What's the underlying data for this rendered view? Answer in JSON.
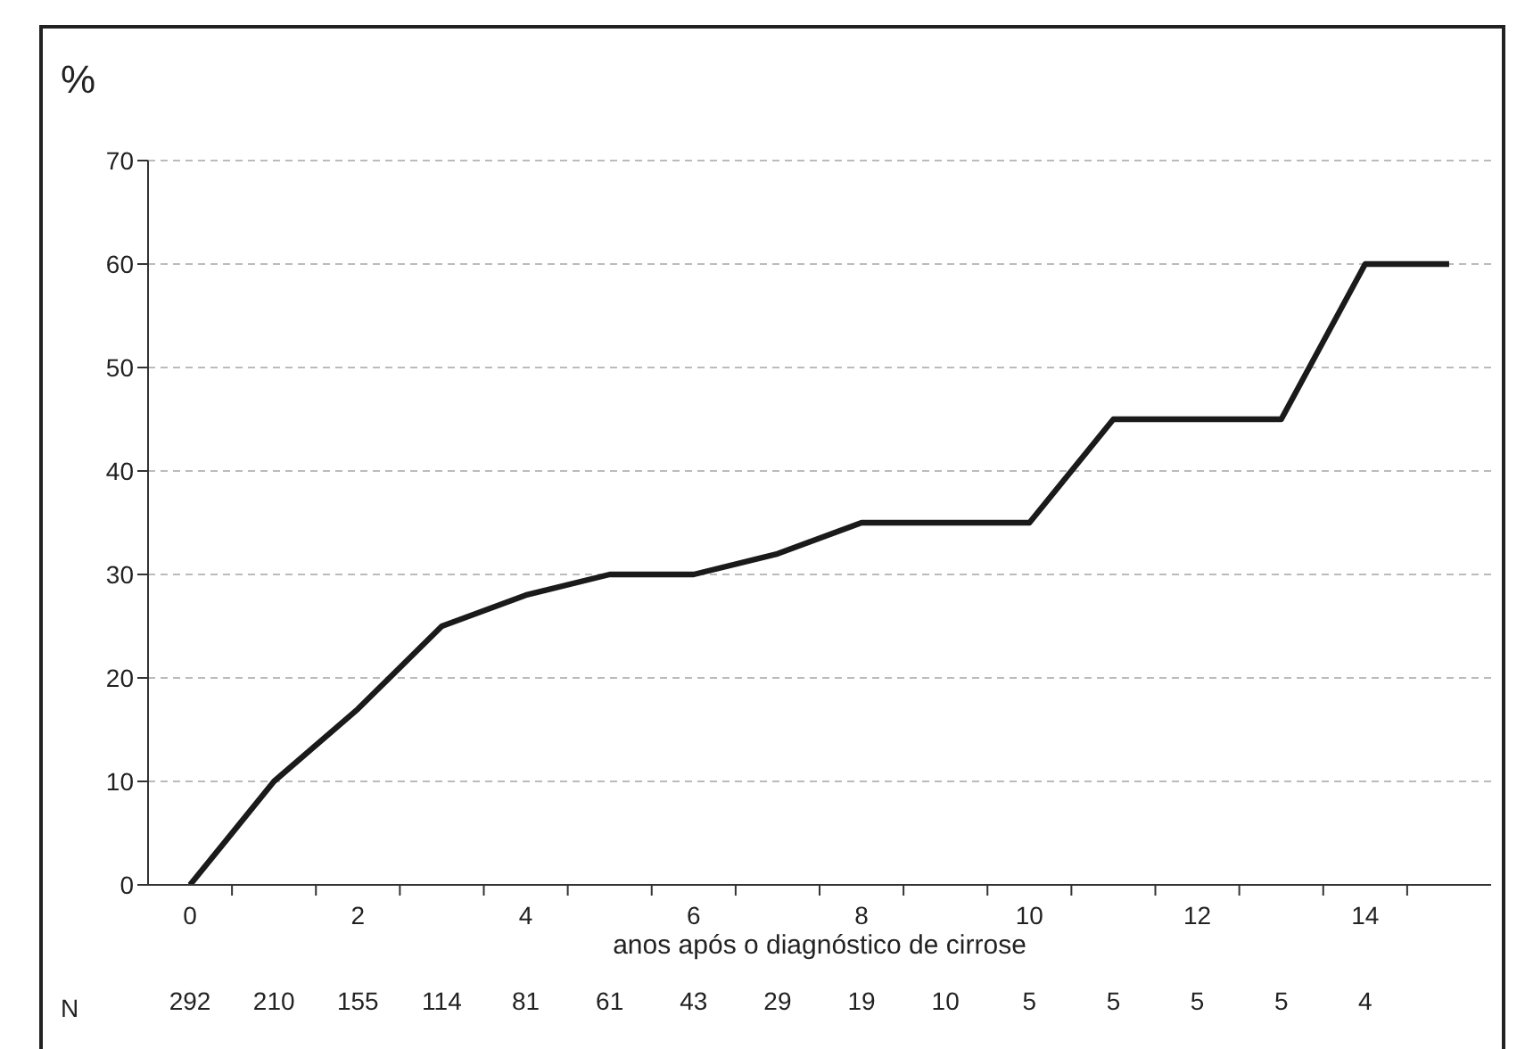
{
  "chart_data": {
    "type": "line",
    "ylabel": "%",
    "xlabel": "anos após o diagnóstico de cirrose",
    "categories": [
      "0",
      null,
      "2",
      null,
      "4",
      null,
      "6",
      null,
      "8",
      null,
      "10",
      null,
      "12",
      null,
      "14",
      null
    ],
    "series": [
      {
        "color": "#1a1a1a",
        "values": [
          0,
          10,
          17,
          25,
          28,
          30,
          30,
          32,
          35,
          35,
          35,
          45,
          45,
          45,
          60,
          60
        ]
      }
    ],
    "ylim": [
      0,
      70
    ],
    "yticks": [
      0,
      10,
      20,
      30,
      40,
      50,
      60,
      70
    ],
    "grid": "y",
    "legend": false,
    "marker": "none",
    "line_style": "solid",
    "annotations": [
      "N",
      "292",
      "210",
      "155",
      "114",
      "81",
      "61",
      "43",
      "29",
      "19",
      "10",
      "5",
      "5",
      "5",
      "5",
      "4"
    ]
  }
}
